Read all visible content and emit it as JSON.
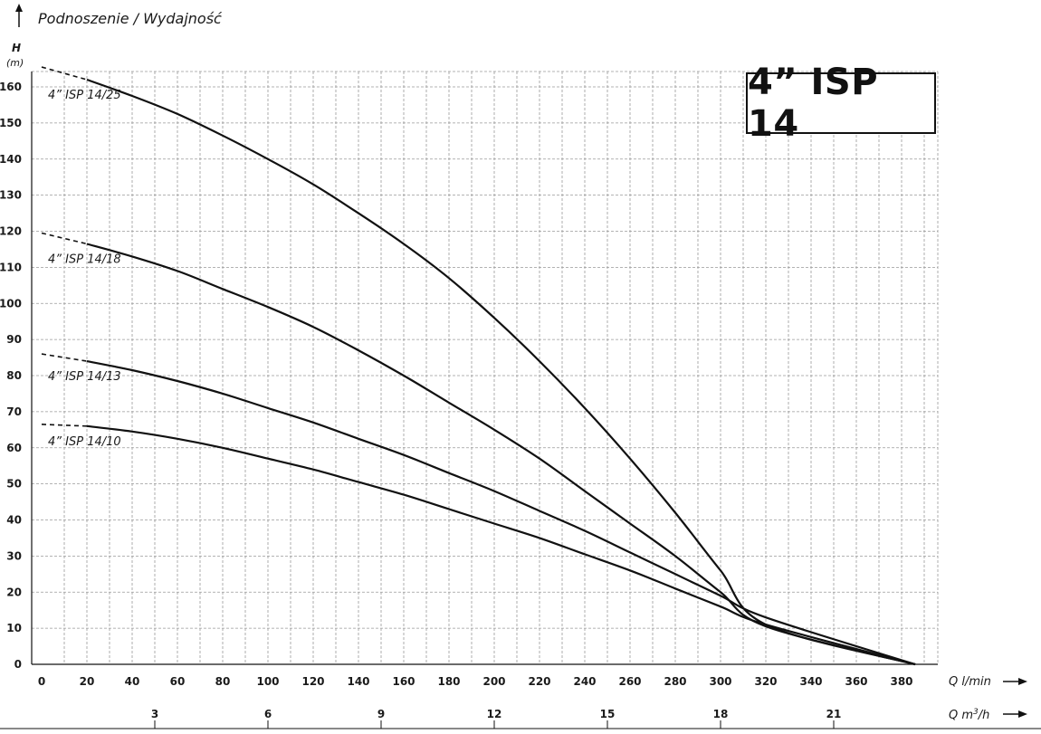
{
  "header": {
    "title": "Podnoszenie / Wydajność",
    "y_axis_symbol": "H",
    "y_axis_unit": "(m)",
    "model": "4” ISP 14"
  },
  "chart_data": {
    "type": "line",
    "title": "Podnoszenie / Wydajność",
    "ylabel": "H (m)",
    "xlabel": "Q l/min",
    "x2label": "Q m³/h",
    "x2label_base": "Q m",
    "x2label_sup": "3",
    "x2label_tail": "/h",
    "xlim": [
      0,
      396
    ],
    "ylim": [
      0,
      170
    ],
    "x_ticks": [
      0,
      20,
      40,
      60,
      80,
      100,
      120,
      140,
      160,
      180,
      200,
      220,
      240,
      260,
      280,
      300,
      320,
      340,
      360,
      380
    ],
    "x2_ticks": [
      3,
      6,
      9,
      12,
      15,
      18,
      21
    ],
    "y_ticks": [
      0,
      10,
      20,
      30,
      40,
      50,
      60,
      70,
      80,
      90,
      100,
      110,
      120,
      130,
      140,
      150,
      160
    ],
    "grid": true,
    "legend": "inline labels at left",
    "series": [
      {
        "name": "4” ISP 14/25",
        "dashed_start": [
          [
            0,
            165.5
          ],
          [
            20,
            162
          ]
        ],
        "points": [
          [
            20,
            162
          ],
          [
            40,
            157.5
          ],
          [
            60,
            152.5
          ],
          [
            80,
            146.5
          ],
          [
            100,
            140
          ],
          [
            120,
            133
          ],
          [
            140,
            125
          ],
          [
            160,
            116.5
          ],
          [
            180,
            107
          ],
          [
            200,
            96
          ],
          [
            220,
            84
          ],
          [
            240,
            71
          ],
          [
            260,
            57
          ],
          [
            280,
            42
          ],
          [
            300,
            26
          ],
          [
            320,
            11
          ],
          [
            386,
            0
          ]
        ]
      },
      {
        "name": "4” ISP 14/18",
        "dashed_start": [
          [
            0,
            119.5
          ],
          [
            20,
            116.5
          ]
        ],
        "points": [
          [
            20,
            116.5
          ],
          [
            40,
            113
          ],
          [
            60,
            109
          ],
          [
            80,
            104
          ],
          [
            100,
            99
          ],
          [
            120,
            93.5
          ],
          [
            140,
            87
          ],
          [
            160,
            80
          ],
          [
            180,
            72.5
          ],
          [
            200,
            65
          ],
          [
            220,
            57
          ],
          [
            240,
            48
          ],
          [
            260,
            39
          ],
          [
            280,
            30
          ],
          [
            300,
            20
          ],
          [
            320,
            10.5
          ],
          [
            386,
            0
          ]
        ]
      },
      {
        "name": "4” ISP 14/13",
        "dashed_start": [
          [
            0,
            86
          ],
          [
            20,
            84
          ]
        ],
        "points": [
          [
            20,
            84
          ],
          [
            40,
            81.5
          ],
          [
            60,
            78.5
          ],
          [
            80,
            75
          ],
          [
            100,
            71
          ],
          [
            120,
            67
          ],
          [
            140,
            62.5
          ],
          [
            160,
            58
          ],
          [
            180,
            53
          ],
          [
            200,
            48
          ],
          [
            220,
            42.5
          ],
          [
            240,
            37
          ],
          [
            260,
            31
          ],
          [
            280,
            25
          ],
          [
            300,
            19
          ],
          [
            320,
            13
          ],
          [
            386,
            0
          ]
        ]
      },
      {
        "name": "4” ISP 14/10",
        "dashed_start": [
          [
            0,
            66.5
          ],
          [
            20,
            66
          ]
        ],
        "points": [
          [
            20,
            66
          ],
          [
            40,
            64.5
          ],
          [
            60,
            62.5
          ],
          [
            80,
            60
          ],
          [
            100,
            57
          ],
          [
            120,
            54
          ],
          [
            140,
            50.5
          ],
          [
            160,
            47
          ],
          [
            180,
            43
          ],
          [
            200,
            39
          ],
          [
            220,
            35
          ],
          [
            240,
            30.5
          ],
          [
            260,
            26
          ],
          [
            280,
            21
          ],
          [
            300,
            16
          ],
          [
            320,
            11
          ],
          [
            386,
            0
          ]
        ]
      }
    ],
    "colors": {
      "curve": "#111111",
      "grid": "#9a9a9a",
      "axis": "#111111"
    }
  }
}
